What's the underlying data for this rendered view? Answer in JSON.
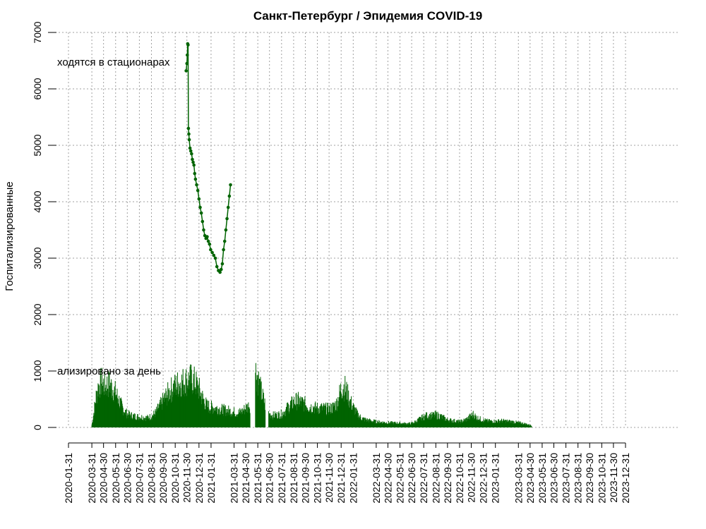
{
  "chart_data": {
    "type": "line",
    "title": "Санкт-Петербург / Эпидемия COVID-19",
    "ylabel": "Госпитализированные",
    "xlabel": "",
    "ylim": [
      0,
      7000
    ],
    "xlim": [
      "2020-01-31",
      "2023-12-31"
    ],
    "yticks": [
      0,
      1000,
      2000,
      3000,
      4000,
      5000,
      6000,
      7000
    ],
    "ytick_labels": [
      "0",
      "1000",
      "2000",
      "3000",
      "4000",
      "5000",
      "6000",
      "7000"
    ],
    "xtick_labels": [
      "2020-01-31",
      "2020-03-31",
      "2020-04-30",
      "2020-05-31",
      "2020-06-30",
      "2020-07-31",
      "2020-08-31",
      "2020-09-30",
      "2020-10-31",
      "2020-11-30",
      "2020-12-31",
      "2021-01-31",
      "2021-03-31",
      "2021-04-30",
      "2021-05-31",
      "2021-06-30",
      "2021-07-31",
      "2021-08-31",
      "2021-09-30",
      "2021-10-31",
      "2021-11-30",
      "2021-12-31",
      "2022-01-31",
      "2022-03-31",
      "2022-04-30",
      "2022-05-31",
      "2022-06-30",
      "2022-07-31",
      "2022-08-31",
      "2022-09-30",
      "2022-10-31",
      "2022-11-30",
      "2022-12-31",
      "2023-01-31",
      "2023-03-31",
      "2023-04-30",
      "2023-05-31",
      "2023-06-30",
      "2023-07-31",
      "2023-08-31",
      "2023-09-30",
      "2023-10-31",
      "2023-11-30",
      "2023-12-31"
    ],
    "grid": true,
    "annotations": [
      "ходятся в стационарах",
      "ализировано за день"
    ],
    "series": [
      {
        "role": "in-hospital",
        "style": "line-with-points",
        "color": "#006400",
        "points": [
          [
            "2020-11-28",
            6320
          ],
          [
            "2020-11-30",
            6450
          ],
          [
            "2020-12-01",
            6600
          ],
          [
            "2020-12-02",
            6800
          ],
          [
            "2020-12-03",
            6780
          ],
          [
            "2020-12-04",
            5300
          ],
          [
            "2020-12-05",
            5200
          ],
          [
            "2020-12-06",
            5100
          ],
          [
            "2020-12-08",
            4950
          ],
          [
            "2020-12-10",
            4900
          ],
          [
            "2020-12-12",
            4850
          ],
          [
            "2020-12-14",
            4750
          ],
          [
            "2020-12-16",
            4700
          ],
          [
            "2020-12-18",
            4650
          ],
          [
            "2020-12-20",
            4500
          ],
          [
            "2020-12-22",
            4400
          ],
          [
            "2020-12-25",
            4300
          ],
          [
            "2020-12-28",
            4200
          ],
          [
            "2020-12-31",
            4050
          ],
          [
            "2021-01-03",
            3900
          ],
          [
            "2021-01-06",
            3800
          ],
          [
            "2021-01-09",
            3650
          ],
          [
            "2021-01-12",
            3500
          ],
          [
            "2021-01-15",
            3400
          ],
          [
            "2021-01-18",
            3350
          ],
          [
            "2021-01-21",
            3380
          ],
          [
            "2021-01-24",
            3300
          ],
          [
            "2021-01-27",
            3250
          ],
          [
            "2021-01-30",
            3150
          ],
          [
            "2021-02-03",
            3100
          ],
          [
            "2021-02-07",
            3050
          ],
          [
            "2021-02-11",
            3000
          ],
          [
            "2021-02-15",
            2850
          ],
          [
            "2021-02-19",
            2780
          ],
          [
            "2021-02-23",
            2750
          ],
          [
            "2021-02-26",
            2800
          ],
          [
            "2021-03-01",
            2900
          ],
          [
            "2021-03-04",
            3150
          ],
          [
            "2021-03-07",
            3300
          ],
          [
            "2021-03-10",
            3500
          ],
          [
            "2021-03-13",
            3700
          ],
          [
            "2021-03-16",
            3900
          ],
          [
            "2021-03-19",
            4100
          ],
          [
            "2021-03-22",
            4300
          ]
        ]
      },
      {
        "role": "hospitalized-per-day",
        "style": "daily-bars",
        "color": "#006400",
        "points": [
          [
            "2020-03-31",
            50
          ],
          [
            "2020-04-05",
            300
          ],
          [
            "2020-04-10",
            600
          ],
          [
            "2020-04-15",
            800
          ],
          [
            "2020-04-20",
            900
          ],
          [
            "2020-04-25",
            950
          ],
          [
            "2020-04-30",
            900
          ],
          [
            "2020-05-05",
            850
          ],
          [
            "2020-05-10",
            900
          ],
          [
            "2020-05-15",
            900
          ],
          [
            "2020-05-20",
            850
          ],
          [
            "2020-05-25",
            800
          ],
          [
            "2020-05-31",
            720
          ],
          [
            "2020-06-07",
            600
          ],
          [
            "2020-06-15",
            450
          ],
          [
            "2020-06-22",
            350
          ],
          [
            "2020-06-30",
            280
          ],
          [
            "2020-07-10",
            250
          ],
          [
            "2020-07-20",
            230
          ],
          [
            "2020-07-31",
            220
          ],
          [
            "2020-08-10",
            210
          ],
          [
            "2020-08-20",
            200
          ],
          [
            "2020-08-31",
            230
          ],
          [
            "2020-09-10",
            300
          ],
          [
            "2020-09-20",
            420
          ],
          [
            "2020-09-30",
            550
          ],
          [
            "2020-10-10",
            680
          ],
          [
            "2020-10-20",
            780
          ],
          [
            "2020-10-31",
            860
          ],
          [
            "2020-11-10",
            920
          ],
          [
            "2020-11-20",
            950
          ],
          [
            "2020-11-30",
            980
          ],
          [
            "2020-12-10",
            1000
          ],
          [
            "2020-12-20",
            950
          ],
          [
            "2020-12-31",
            800
          ],
          [
            "2021-01-10",
            600
          ],
          [
            "2021-01-20",
            450
          ],
          [
            "2021-01-31",
            420
          ],
          [
            "2021-02-15",
            400
          ],
          [
            "2021-02-28",
            370
          ],
          [
            "2021-03-15",
            350
          ],
          [
            "2021-03-31",
            320
          ],
          [
            "2021-04-10",
            300
          ],
          [
            "2021-04-20",
            330
          ],
          [
            "2021-04-30",
            400
          ],
          [
            "2021-05-10",
            460
          ],
          [
            "2021-05-12",
            470
          ],
          [
            "2021-05-20",
            null
          ],
          [
            "2021-05-25",
            1180
          ],
          [
            "2021-05-31",
            1050
          ],
          [
            "2021-06-05",
            850
          ],
          [
            "2021-06-12",
            650
          ],
          [
            "2021-06-20",
            450
          ],
          [
            "2021-06-25",
            null
          ],
          [
            "2021-06-28",
            280
          ],
          [
            "2021-07-10",
            250
          ],
          [
            "2021-07-20",
            260
          ],
          [
            "2021-07-31",
            280
          ],
          [
            "2021-08-10",
            350
          ],
          [
            "2021-08-20",
            450
          ],
          [
            "2021-08-31",
            520
          ],
          [
            "2021-09-10",
            560
          ],
          [
            "2021-09-20",
            520
          ],
          [
            "2021-09-30",
            480
          ],
          [
            "2021-10-10",
            430
          ],
          [
            "2021-10-20",
            420
          ],
          [
            "2021-10-31",
            400
          ],
          [
            "2021-11-10",
            400
          ],
          [
            "2021-11-20",
            390
          ],
          [
            "2021-11-30",
            380
          ],
          [
            "2021-12-10",
            420
          ],
          [
            "2021-12-20",
            500
          ],
          [
            "2021-12-31",
            800
          ],
          [
            "2022-01-05",
            860
          ],
          [
            "2022-01-12",
            800
          ],
          [
            "2022-01-20",
            600
          ],
          [
            "2022-01-31",
            420
          ],
          [
            "2022-02-10",
            280
          ],
          [
            "2022-02-20",
            200
          ],
          [
            "2022-02-28",
            170
          ],
          [
            "2022-03-15",
            140
          ],
          [
            "2022-03-31",
            120
          ],
          [
            "2022-04-15",
            110
          ],
          [
            "2022-04-30",
            100
          ],
          [
            "2022-05-15",
            95
          ],
          [
            "2022-05-31",
            90
          ],
          [
            "2022-06-15",
            80
          ],
          [
            "2022-06-30",
            85
          ],
          [
            "2022-07-10",
            120
          ],
          [
            "2022-07-20",
            170
          ],
          [
            "2022-07-31",
            220
          ],
          [
            "2022-08-10",
            250
          ],
          [
            "2022-08-20",
            240
          ],
          [
            "2022-08-31",
            260
          ],
          [
            "2022-09-10",
            240
          ],
          [
            "2022-09-20",
            200
          ],
          [
            "2022-09-30",
            160
          ],
          [
            "2022-10-15",
            140
          ],
          [
            "2022-10-31",
            120
          ],
          [
            "2022-11-10",
            140
          ],
          [
            "2022-11-20",
            180
          ],
          [
            "2022-11-30",
            240
          ],
          [
            "2022-12-05",
            270
          ],
          [
            "2022-12-15",
            200
          ],
          [
            "2022-12-31",
            150
          ],
          [
            "2023-01-15",
            130
          ],
          [
            "2023-01-31",
            130
          ],
          [
            "2023-02-15",
            140
          ],
          [
            "2023-02-28",
            130
          ],
          [
            "2023-03-15",
            120
          ],
          [
            "2023-03-31",
            100
          ],
          [
            "2023-04-15",
            80
          ],
          [
            "2023-04-30",
            50
          ],
          [
            "2023-05-05",
            30
          ]
        ]
      }
    ]
  }
}
